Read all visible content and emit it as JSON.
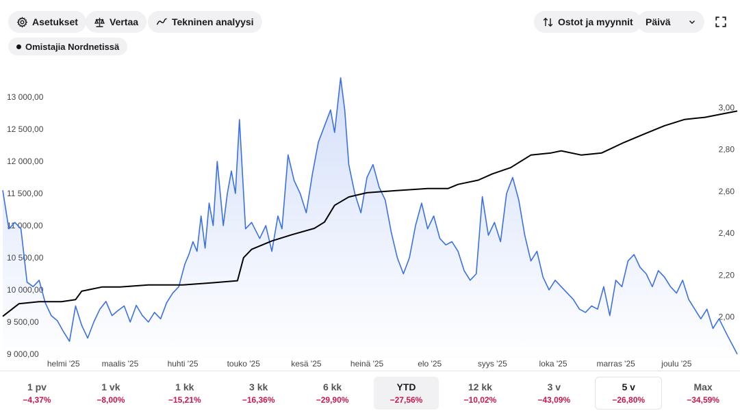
{
  "toolbar": {
    "settings_label": "Asetukset",
    "compare_label": "Vertaa",
    "technical_label": "Tekninen analyysi",
    "trades_label": "Ostot ja myynnit",
    "interval_value": "Päivä"
  },
  "legend": {
    "owners_label": "Omistajia Nordnetissä"
  },
  "colors": {
    "price_line": "#3a6fe8",
    "owners_line": "#000000",
    "negative": "#c8174a"
  },
  "periods": [
    {
      "label": "1 pv",
      "change": "−4,37%"
    },
    {
      "label": "1 vk",
      "change": "−8,00%"
    },
    {
      "label": "1 kk",
      "change": "−15,21%"
    },
    {
      "label": "3 kk",
      "change": "−16,36%"
    },
    {
      "label": "6 kk",
      "change": "−29,90%"
    },
    {
      "label": "YTD",
      "change": "−27,56%"
    },
    {
      "label": "12 kk",
      "change": "−10,02%"
    },
    {
      "label": "3 v",
      "change": "−43,09%"
    },
    {
      "label": "5 v",
      "change": "−26,80%"
    },
    {
      "label": "Max",
      "change": "−34,59%"
    }
  ],
  "chart_data": {
    "type": "line",
    "x_range": [
      "2025-01-02",
      "2025-12-31"
    ],
    "x_tick_labels": [
      {
        "label": "helmi '25",
        "date": "2025-02-01"
      },
      {
        "label": "maalis '25",
        "date": "2025-03-01"
      },
      {
        "label": "huhti '25",
        "date": "2025-04-01"
      },
      {
        "label": "touko '25",
        "date": "2025-05-01"
      },
      {
        "label": "kesä '25",
        "date": "2025-06-01"
      },
      {
        "label": "heinä '25",
        "date": "2025-07-01"
      },
      {
        "label": "elo '25",
        "date": "2025-08-01"
      },
      {
        "label": "syys '25",
        "date": "2025-09-01"
      },
      {
        "label": "loka '25",
        "date": "2025-10-01"
      },
      {
        "label": "marras '25",
        "date": "2025-11-01"
      },
      {
        "label": "joulu '25",
        "date": "2025-12-01"
      }
    ],
    "left_axis": {
      "ylim": [
        9000,
        13500
      ],
      "ticks": [
        9000,
        9500,
        10000,
        10500,
        11000,
        11500,
        12000,
        12500,
        13000
      ],
      "tick_labels": [
        "9 000,00",
        "9 500,00",
        "10 000,00",
        "10 500,00",
        "11 000,00",
        "11 500,00",
        "12 000,00",
        "12 500,00",
        "13 000,00"
      ]
    },
    "right_axis": {
      "ylim": [
        1.8,
        3.2
      ],
      "ticks": [
        2.0,
        2.2,
        2.4,
        2.6,
        2.8,
        3.0
      ],
      "tick_labels": [
        "2,00",
        "2,20",
        "2,40",
        "2,60",
        "2,80",
        "3,00"
      ]
    },
    "series": [
      {
        "axis": "left",
        "style": "area",
        "points": [
          [
            "2025-01-02",
            11550
          ],
          [
            "2025-01-05",
            10950
          ],
          [
            "2025-01-08",
            11050
          ],
          [
            "2025-01-11",
            10950
          ],
          [
            "2025-01-14",
            10120
          ],
          [
            "2025-01-17",
            10050
          ],
          [
            "2025-01-20",
            10150
          ],
          [
            "2025-01-23",
            9800
          ],
          [
            "2025-01-26",
            9600
          ],
          [
            "2025-01-29",
            9520
          ],
          [
            "2025-02-01",
            9350
          ],
          [
            "2025-02-04",
            9200
          ],
          [
            "2025-02-07",
            9750
          ],
          [
            "2025-02-10",
            9450
          ],
          [
            "2025-02-13",
            9250
          ],
          [
            "2025-02-16",
            9500
          ],
          [
            "2025-02-19",
            9700
          ],
          [
            "2025-02-22",
            9820
          ],
          [
            "2025-02-25",
            9600
          ],
          [
            "2025-02-28",
            9680
          ],
          [
            "2025-03-03",
            9750
          ],
          [
            "2025-03-06",
            9500
          ],
          [
            "2025-03-09",
            9760
          ],
          [
            "2025-03-12",
            9600
          ],
          [
            "2025-03-15",
            9500
          ],
          [
            "2025-03-18",
            9650
          ],
          [
            "2025-03-21",
            9550
          ],
          [
            "2025-03-24",
            9800
          ],
          [
            "2025-03-27",
            9950
          ],
          [
            "2025-03-30",
            10050
          ],
          [
            "2025-04-02",
            10400
          ],
          [
            "2025-04-04",
            10550
          ],
          [
            "2025-04-06",
            10750
          ],
          [
            "2025-04-08",
            10600
          ],
          [
            "2025-04-10",
            11150
          ],
          [
            "2025-04-12",
            10650
          ],
          [
            "2025-04-14",
            11350
          ],
          [
            "2025-04-16",
            11000
          ],
          [
            "2025-04-18",
            12000
          ],
          [
            "2025-04-21",
            11000
          ],
          [
            "2025-04-23",
            11500
          ],
          [
            "2025-04-25",
            11850
          ],
          [
            "2025-04-27",
            11500
          ],
          [
            "2025-04-29",
            12650
          ],
          [
            "2025-05-02",
            10950
          ],
          [
            "2025-05-05",
            11050
          ],
          [
            "2025-05-09",
            10800
          ],
          [
            "2025-05-12",
            11000
          ],
          [
            "2025-05-15",
            10600
          ],
          [
            "2025-05-18",
            11150
          ],
          [
            "2025-05-20",
            10950
          ],
          [
            "2025-05-23",
            12100
          ],
          [
            "2025-05-26",
            11700
          ],
          [
            "2025-05-29",
            11500
          ],
          [
            "2025-06-01",
            11200
          ],
          [
            "2025-06-04",
            11800
          ],
          [
            "2025-06-07",
            12300
          ],
          [
            "2025-06-10",
            12550
          ],
          [
            "2025-06-13",
            12800
          ],
          [
            "2025-06-15",
            12450
          ],
          [
            "2025-06-18",
            13300
          ],
          [
            "2025-06-20",
            12800
          ],
          [
            "2025-06-22",
            11950
          ],
          [
            "2025-06-25",
            11500
          ],
          [
            "2025-06-28",
            11200
          ],
          [
            "2025-07-01",
            11750
          ],
          [
            "2025-07-04",
            11950
          ],
          [
            "2025-07-07",
            11600
          ],
          [
            "2025-07-10",
            11400
          ],
          [
            "2025-07-13",
            10900
          ],
          [
            "2025-07-16",
            10500
          ],
          [
            "2025-07-19",
            10250
          ],
          [
            "2025-07-22",
            10500
          ],
          [
            "2025-07-25",
            11000
          ],
          [
            "2025-07-28",
            11350
          ],
          [
            "2025-07-31",
            10950
          ],
          [
            "2025-08-03",
            11150
          ],
          [
            "2025-08-06",
            10800
          ],
          [
            "2025-08-09",
            10700
          ],
          [
            "2025-08-12",
            10750
          ],
          [
            "2025-08-15",
            10600
          ],
          [
            "2025-08-18",
            10300
          ],
          [
            "2025-08-21",
            10150
          ],
          [
            "2025-08-24",
            10250
          ],
          [
            "2025-08-27",
            11450
          ],
          [
            "2025-08-30",
            10850
          ],
          [
            "2025-09-02",
            11050
          ],
          [
            "2025-09-05",
            10750
          ],
          [
            "2025-09-08",
            11500
          ],
          [
            "2025-09-11",
            11750
          ],
          [
            "2025-09-14",
            11400
          ],
          [
            "2025-09-17",
            10850
          ],
          [
            "2025-09-20",
            10450
          ],
          [
            "2025-09-23",
            10600
          ],
          [
            "2025-09-26",
            10200
          ],
          [
            "2025-09-29",
            10000
          ],
          [
            "2025-10-02",
            10150
          ],
          [
            "2025-10-05",
            10050
          ],
          [
            "2025-10-08",
            9950
          ],
          [
            "2025-10-11",
            9850
          ],
          [
            "2025-10-14",
            9700
          ],
          [
            "2025-10-17",
            9650
          ],
          [
            "2025-10-20",
            9750
          ],
          [
            "2025-10-23",
            9700
          ],
          [
            "2025-10-26",
            10050
          ],
          [
            "2025-10-29",
            9600
          ],
          [
            "2025-11-01",
            10150
          ],
          [
            "2025-11-04",
            10050
          ],
          [
            "2025-11-07",
            10450
          ],
          [
            "2025-11-10",
            10550
          ],
          [
            "2025-11-13",
            10350
          ],
          [
            "2025-11-16",
            10250
          ],
          [
            "2025-11-19",
            10050
          ],
          [
            "2025-11-22",
            10300
          ],
          [
            "2025-11-25",
            10200
          ],
          [
            "2025-11-28",
            10050
          ],
          [
            "2025-12-01",
            9950
          ],
          [
            "2025-12-04",
            10150
          ],
          [
            "2025-12-07",
            9850
          ],
          [
            "2025-12-10",
            9700
          ],
          [
            "2025-12-13",
            9550
          ],
          [
            "2025-12-16",
            9700
          ],
          [
            "2025-12-19",
            9400
          ],
          [
            "2025-12-22",
            9550
          ],
          [
            "2025-12-26",
            9300
          ],
          [
            "2025-12-31",
            9000
          ]
        ]
      },
      {
        "axis": "right",
        "style": "line",
        "points": [
          [
            "2025-01-02",
            2.0
          ],
          [
            "2025-01-10",
            2.06
          ],
          [
            "2025-01-20",
            2.07
          ],
          [
            "2025-01-31",
            2.07
          ],
          [
            "2025-02-07",
            2.08
          ],
          [
            "2025-02-10",
            2.12
          ],
          [
            "2025-02-20",
            2.14
          ],
          [
            "2025-03-01",
            2.14
          ],
          [
            "2025-03-15",
            2.15
          ],
          [
            "2025-04-01",
            2.15
          ],
          [
            "2025-04-15",
            2.16
          ],
          [
            "2025-04-28",
            2.17
          ],
          [
            "2025-05-01",
            2.28
          ],
          [
            "2025-05-05",
            2.32
          ],
          [
            "2025-05-15",
            2.36
          ],
          [
            "2025-05-25",
            2.39
          ],
          [
            "2025-06-05",
            2.42
          ],
          [
            "2025-06-10",
            2.45
          ],
          [
            "2025-06-15",
            2.53
          ],
          [
            "2025-06-22",
            2.57
          ],
          [
            "2025-07-01",
            2.59
          ],
          [
            "2025-07-15",
            2.6
          ],
          [
            "2025-07-31",
            2.61
          ],
          [
            "2025-08-10",
            2.61
          ],
          [
            "2025-08-15",
            2.63
          ],
          [
            "2025-08-25",
            2.65
          ],
          [
            "2025-09-01",
            2.68
          ],
          [
            "2025-09-10",
            2.71
          ],
          [
            "2025-09-20",
            2.77
          ],
          [
            "2025-09-30",
            2.78
          ],
          [
            "2025-10-05",
            2.79
          ],
          [
            "2025-10-15",
            2.77
          ],
          [
            "2025-10-25",
            2.78
          ],
          [
            "2025-11-05",
            2.83
          ],
          [
            "2025-11-15",
            2.87
          ],
          [
            "2025-11-25",
            2.91
          ],
          [
            "2025-12-05",
            2.94
          ],
          [
            "2025-12-15",
            2.95
          ],
          [
            "2025-12-31",
            2.98
          ]
        ]
      }
    ]
  }
}
